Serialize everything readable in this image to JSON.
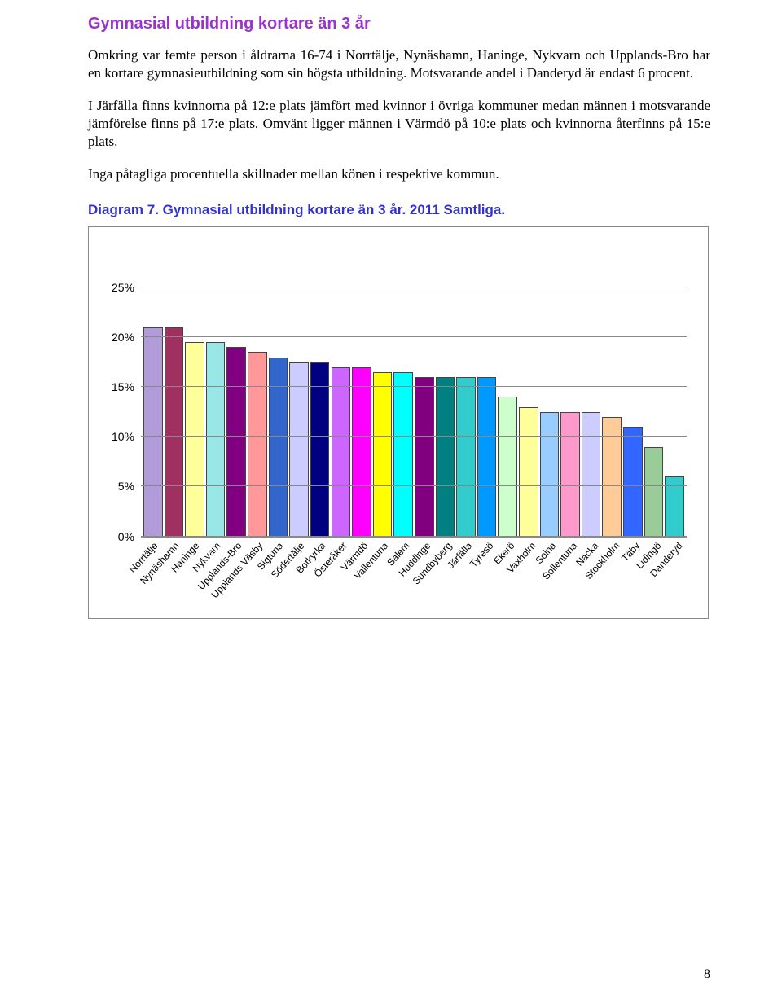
{
  "colors": {
    "heading_purple": "#9933cc",
    "chart_title_blue": "#3333cc",
    "text": "#000000"
  },
  "heading": "Gymnasial utbildning kortare än 3 år",
  "paragraphs": {
    "p1": "Omkring var femte person i åldrarna 16-74 i Norrtälje, Nynäshamn, Haninge, Nykvarn och Upplands-Bro har en kortare gymnasieutbildning som sin högsta utbildning. Motsvarande andel i Danderyd är endast 6 procent.",
    "p2": "I Järfälla finns kvinnorna på 12:e plats jämfört med kvinnor i övriga kommuner medan männen i motsvarande jämförelse finns på 17:e plats. Omvänt ligger männen i Värmdö på 10:e plats och kvinnorna återfinns på 15:e plats.",
    "p3": "Inga påtagliga procentuella skillnader mellan könen i respektive kommun."
  },
  "chart": {
    "title": "Diagram 7. Gymnasial utbildning kortare än 3 år. 2011 Samtliga.",
    "type": "bar",
    "ymax": 27,
    "ymin": 0,
    "ytick_step": 5,
    "yticks": [
      "0%",
      "5%",
      "10%",
      "15%",
      "20%",
      "25%"
    ],
    "grid_color": "#888888",
    "background_color": "#ffffff",
    "bar_border": "#444444",
    "categories": [
      "Norrtälje",
      "Nynäshamn",
      "Haninge",
      "Nykvarn",
      "Upplands-Bro",
      "Upplands Väsby",
      "Sigtuna",
      "Södertälje",
      "Botkyrka",
      "Österåker",
      "Värmdö",
      "Vallentuna",
      "Salem",
      "Huddinge",
      "Sundbyberg",
      "Järfälla",
      "Tyresö",
      "Ekerö",
      "Vaxholm",
      "Solna",
      "Sollentuna",
      "Nacka",
      "Stockholm",
      "Täby",
      "Lidingö",
      "Danderyd"
    ],
    "values": [
      21,
      21,
      19.5,
      19.5,
      19,
      18.5,
      18,
      17.5,
      17.5,
      17,
      17,
      16.5,
      16.5,
      16,
      16,
      16,
      16,
      14,
      13,
      12.5,
      12.5,
      12.5,
      12,
      11,
      9,
      6
    ],
    "bar_colors": [
      "#b19cd9",
      "#a03060",
      "#ffff99",
      "#99e6e6",
      "#800080",
      "#ff9999",
      "#3366cc",
      "#ccccff",
      "#000080",
      "#cc66ff",
      "#ff00ff",
      "#ffff00",
      "#00ffff",
      "#800080",
      "#008080",
      "#33cccc",
      "#0099ff",
      "#ccffcc",
      "#ffff99",
      "#99ccff",
      "#ff99cc",
      "#ccccff",
      "#ffcc99",
      "#3366ff",
      "#99cc99",
      "#33cccc"
    ]
  },
  "page_number": "8"
}
